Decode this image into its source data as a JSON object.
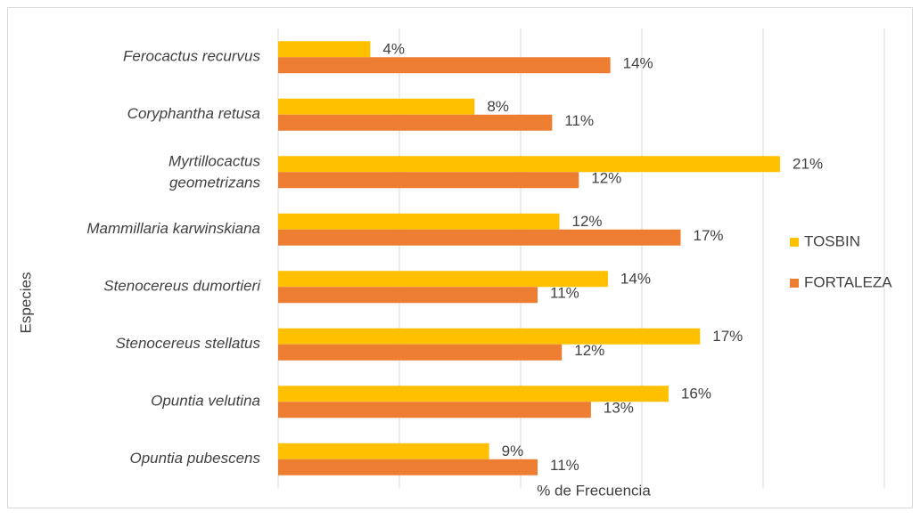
{
  "chart_data": {
    "type": "bar",
    "orientation": "horizontal",
    "x_label": "%  de Frecuencia",
    "y_label": "Especies",
    "categories": [
      "Ferocactus recurvus",
      "Coryphantha retusa",
      "Myrtillocactus geometrizans",
      "Mammillaria karwinskiana",
      "Stenocereus dumortieri",
      "Stenocereus stellatus",
      "Opuntia velutina",
      "Opuntia pubescens"
    ],
    "series": [
      {
        "name": "TOSBIN",
        "color": "#ffc000",
        "values": [
          3.8,
          8.1,
          20.7,
          11.6,
          13.6,
          17.4,
          16.1,
          8.7
        ],
        "value_labels": [
          "4%",
          "8%",
          "21%",
          "12%",
          "14%",
          "17%",
          "16%",
          "9%"
        ]
      },
      {
        "name": "FORTALEZA",
        "color": "#ed7d31",
        "values": [
          13.7,
          11.3,
          12.4,
          16.6,
          10.7,
          11.7,
          12.9,
          10.7
        ],
        "value_labels": [
          "14%",
          "11%",
          "12%",
          "17%",
          "11%",
          "12%",
          "13%",
          "11%"
        ]
      }
    ],
    "xlim": [
      0,
      25
    ],
    "xticks": [
      0,
      5,
      10,
      15,
      20,
      25
    ],
    "grid": true,
    "legend": "right"
  }
}
